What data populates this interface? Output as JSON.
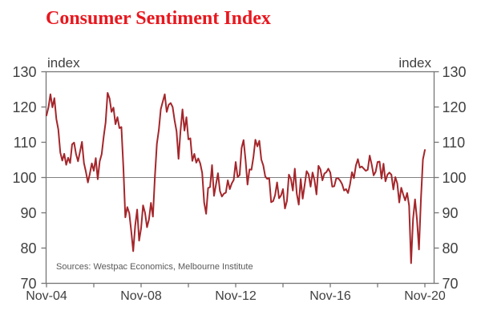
{
  "title": "Consumer Sentiment Index",
  "y_unit_label": "index",
  "source_note": "Sources: Westpac Economics, Melbourne Institute",
  "colors": {
    "title": "#e8171e",
    "line": "#a4262b",
    "axis": "#767676",
    "reference_line": "#808080",
    "tick_text": "#404040",
    "source_text": "#595959",
    "background": "#ffffff"
  },
  "chart_data": {
    "type": "line",
    "title": "Consumer Sentiment Index",
    "ylabel": "index",
    "ylim": [
      70,
      130
    ],
    "yticks": [
      70,
      80,
      90,
      100,
      110,
      120,
      130
    ],
    "reference_line_y": 100,
    "grid": "horizontal reference line at 100 only",
    "legend": "none",
    "x_tick_labels": [
      "Nov-04",
      "Nov-08",
      "Nov-12",
      "Nov-16",
      "Nov-20"
    ],
    "x_tick_months": [
      0,
      48,
      96,
      144,
      192
    ],
    "x_minor_tick_months": [
      24,
      72,
      120,
      168
    ],
    "series": [
      {
        "name": "Consumer Sentiment Index",
        "start": "Nov-2004",
        "end": "Nov-2020",
        "frequency": "monthly",
        "values": [
          117.5,
          119.8,
          123.5,
          119.8,
          122.4,
          116.5,
          113.5,
          107.0,
          104.7,
          106.6,
          103.5,
          105.5,
          104.0,
          109.3,
          109.8,
          106.5,
          104.5,
          107.2,
          110.0,
          104.0,
          101.5,
          98.5,
          101.0,
          103.9,
          101.8,
          105.4,
          99.4,
          104.5,
          106.5,
          111.4,
          115.5,
          123.9,
          122.3,
          118.5,
          119.7,
          115.0,
          117.0,
          113.9,
          114.2,
          102.9,
          88.6,
          91.5,
          89.8,
          84.7,
          79.0,
          86.2,
          90.8,
          82.0,
          85.5,
          92.0,
          89.9,
          85.8,
          88.0,
          92.7,
          88.8,
          100.1,
          109.4,
          113.4,
          119.3,
          121.4,
          123.5,
          118.5,
          120.5,
          121.0,
          119.9,
          116.1,
          113.0,
          105.2,
          113.1,
          119.2,
          113.2,
          117.0,
          110.7,
          111.0,
          104.6,
          106.6,
          104.1,
          105.3,
          103.9,
          101.2,
          92.8,
          89.6,
          96.9,
          97.2,
          103.4,
          94.7,
          97.9,
          101.1,
          96.1,
          94.5,
          95.3,
          95.6,
          99.1,
          96.6,
          98.2,
          99.2,
          104.3,
          100.0,
          100.6,
          108.3,
          110.5,
          104.9,
          97.9,
          102.2,
          102.1,
          105.7,
          110.6,
          108.7,
          110.3,
          105.0,
          103.3,
          100.2,
          99.5,
          99.7,
          92.9,
          93.2,
          94.9,
          98.5,
          94.0,
          94.8,
          96.6,
          91.1,
          93.2,
          100.7,
          99.5,
          96.2,
          102.4,
          95.3,
          92.2,
          99.5,
          93.9,
          97.8,
          101.7,
          100.8,
          97.3,
          101.3,
          99.1,
          95.1,
          103.2,
          102.2,
          99.1,
          101.0,
          101.4,
          102.4,
          101.3,
          97.3,
          97.4,
          99.6,
          99.7,
          99.0,
          98.0,
          96.2,
          96.6,
          95.5,
          97.9,
          101.4,
          99.7,
          103.3,
          105.1,
          102.7,
          103.0,
          102.4,
          101.8,
          102.1,
          106.1,
          103.6,
          100.5,
          101.5,
          104.3,
          104.4,
          99.6,
          103.8,
          98.8,
          100.7,
          101.3,
          100.7,
          96.5,
          100.0,
          98.2,
          92.8,
          97.0,
          95.1,
          93.4,
          95.5,
          91.9,
          75.6,
          88.1,
          93.7,
          87.9,
          79.5,
          93.8,
          105.0,
          107.7
        ]
      }
    ]
  }
}
